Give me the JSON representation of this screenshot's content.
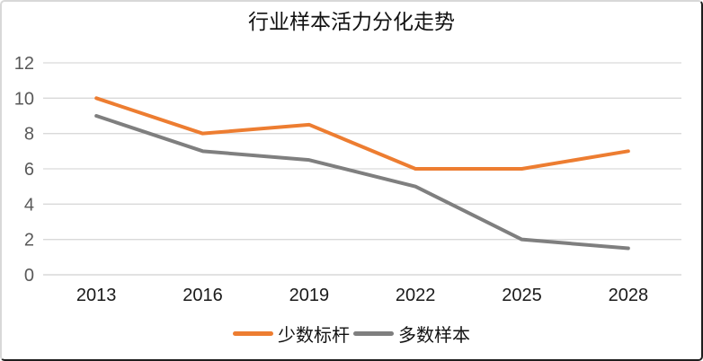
{
  "title": "行业样本活力分化走势",
  "chart_data": {
    "type": "line",
    "title": "行业样本活力分化走势",
    "categories": [
      "2013",
      "2016",
      "2019",
      "2022",
      "2025",
      "2028"
    ],
    "series": [
      {
        "name": "少数标杆",
        "color": "#ED7D31",
        "values": [
          10,
          8,
          8.5,
          6,
          6,
          7
        ]
      },
      {
        "name": "多数样本",
        "color": "#7F7F7F",
        "values": [
          9,
          7,
          6.5,
          5,
          2,
          1.5
        ]
      }
    ],
    "xlabel": "",
    "ylabel": "",
    "ylim": [
      0,
      12
    ],
    "yticks": [
      0,
      2,
      4,
      6,
      8,
      10,
      12
    ],
    "grid": true,
    "legend_position": "bottom"
  },
  "colors": {
    "background": "#FFFFFF",
    "gridline": "#D9D9D9",
    "axis_line": "#D0D0D0",
    "y_tick_label": "#595959",
    "x_tick_label": "#1A1A1A",
    "title": "#111111"
  }
}
